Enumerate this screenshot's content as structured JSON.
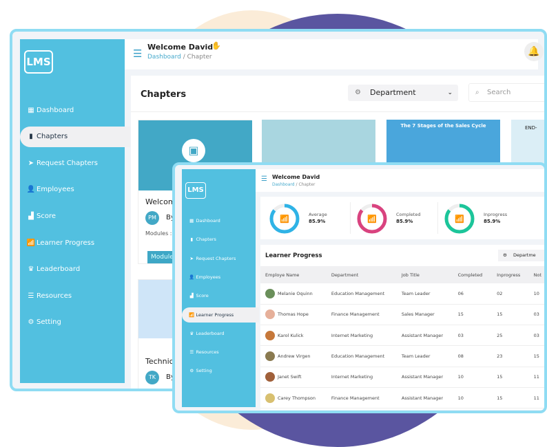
{
  "colors": {
    "sidebar": "#52c0e0",
    "border": "#8fdcf3",
    "accent_blue": "#2fb3e6",
    "accent_pink": "#d9437f",
    "accent_green": "#1cc59a",
    "purple_bg": "#5a55a0",
    "cream_bg": "#fbecd8"
  },
  "back": {
    "logo": "LMS",
    "welcome": "Welcome David",
    "breadcrumb": {
      "root": "Dashboard",
      "sep": "/",
      "current": "Chapter"
    },
    "nav": [
      {
        "label": "Dashboard",
        "icon": "grid-icon"
      },
      {
        "label": "Chapters",
        "icon": "book-icon"
      },
      {
        "label": "Request Chapters",
        "icon": "send-icon"
      },
      {
        "label": "Employees",
        "icon": "user-icon"
      },
      {
        "label": "Score",
        "icon": "bar-chart-icon"
      },
      {
        "label": "Learner Progress",
        "icon": "progress-chart-icon"
      },
      {
        "label": "Leaderboard",
        "icon": "crown-icon"
      },
      {
        "label": "Resources",
        "icon": "database-icon"
      },
      {
        "label": "Setting",
        "icon": "gear-icon"
      }
    ],
    "title": "Chapters",
    "filter": "Department",
    "search_placeholder": "Search",
    "cards": [
      {
        "title": "Welcom",
        "avatar": "PM",
        "by": "By",
        "modules": "Modules :",
        "button": "Module"
      },
      {
        "title": "Technic",
        "avatar": "TK",
        "by": "By"
      }
    ],
    "thumb_text": "The 7 Stages of the Sales Cycle",
    "thumb4_text": "END-"
  },
  "front": {
    "logo": "LMS",
    "welcome": "Welcome David",
    "breadcrumb": {
      "root": "Dashboard",
      "sep": "/",
      "current": "Chapter"
    },
    "nav": [
      {
        "label": "Dashboard"
      },
      {
        "label": "Chapters"
      },
      {
        "label": "Request Chapters"
      },
      {
        "label": "Employees"
      },
      {
        "label": "Score"
      },
      {
        "label": "Learner Progress"
      },
      {
        "label": "Leaderboard"
      },
      {
        "label": "Resources"
      },
      {
        "label": "Setting"
      }
    ],
    "stats": [
      {
        "label": "Average",
        "value": "85.9%",
        "percent": 85.9,
        "color": "#2fb3e6"
      },
      {
        "label": "Completed",
        "value": "85.9%",
        "percent": 85.9,
        "color": "#d9437f"
      },
      {
        "label": "Inprogress",
        "value": "85.9%",
        "percent": 85.9,
        "color": "#1cc59a"
      }
    ],
    "section_title": "Learner Progress",
    "filter": "Departme",
    "columns": [
      "Employe Name",
      "Department",
      "Job Title",
      "Completed",
      "Inprogress",
      "Not"
    ],
    "rows": [
      [
        "Melanie Oquinn",
        "Education Management",
        "Team Leader",
        "06",
        "02",
        "10"
      ],
      [
        "Thomas Hope",
        "Finance Management",
        "Sales Manager",
        "15",
        "15",
        "03"
      ],
      [
        "Karol Kulick",
        "Internet Marketing",
        "Assistant Manager",
        "03",
        "25",
        "03"
      ],
      [
        "Andrew Virgen",
        "Education Management",
        "Team Leader",
        "08",
        "23",
        "15"
      ],
      [
        "Janet Swift",
        "Internet Marketing",
        "Assistant Manager",
        "10",
        "15",
        "11"
      ],
      [
        "Carey Thompson",
        "Finance Management",
        "Assistant Manager",
        "10",
        "15",
        "11"
      ]
    ]
  }
}
